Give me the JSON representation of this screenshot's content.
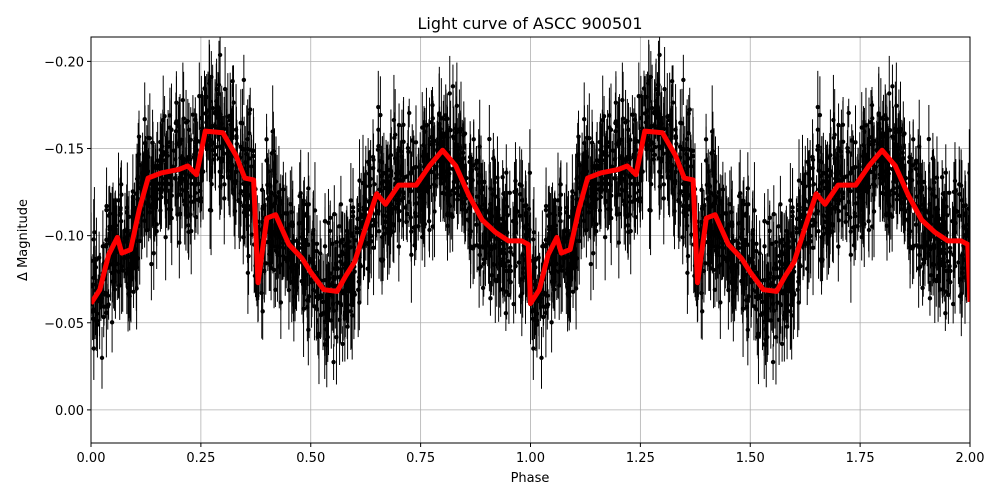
{
  "chart_data": {
    "type": "scatter",
    "title": "Light curve of ASCC 900501",
    "xlabel": "Phase",
    "ylabel": "Δ Magnitude",
    "xlim": [
      0,
      2
    ],
    "ylim": [
      0.019,
      -0.214
    ],
    "y_inverted": true,
    "grid": true,
    "xticks": [
      0,
      0.25,
      0.5,
      0.75,
      1.0,
      1.25,
      1.5,
      1.75,
      2.0
    ],
    "xtick_labels": [
      "0.00",
      "0.25",
      "0.50",
      "0.75",
      "1.00",
      "1.25",
      "1.50",
      "1.75",
      "2.00"
    ],
    "yticks": [
      -0.2,
      -0.15,
      -0.1,
      -0.05,
      0.0
    ],
    "ytick_labels": [
      "−0.20",
      "−0.15",
      "−0.10",
      "−0.05",
      "0.00"
    ],
    "colors": {
      "points": "#000000",
      "binned_curve": "#ff0000",
      "grid": "#b0b0b0"
    },
    "series": [
      {
        "kind": "binned-curve",
        "period_repeat": 2,
        "x": [
          0.0,
          0.02,
          0.04,
          0.06,
          0.07,
          0.09,
          0.11,
          0.13,
          0.16,
          0.2,
          0.22,
          0.24,
          0.26,
          0.3,
          0.33,
          0.35,
          0.37,
          0.38,
          0.4,
          0.42,
          0.45,
          0.48,
          0.5,
          0.53,
          0.56,
          0.58,
          0.6,
          0.62,
          0.65,
          0.67,
          0.7,
          0.74,
          0.77,
          0.8,
          0.83,
          0.86,
          0.89,
          0.92,
          0.95,
          0.98,
          0.995
        ],
        "y": [
          -0.061,
          -0.069,
          -0.089,
          -0.099,
          -0.09,
          -0.092,
          -0.115,
          -0.133,
          -0.136,
          -0.138,
          -0.14,
          -0.135,
          -0.16,
          -0.159,
          -0.146,
          -0.133,
          -0.132,
          -0.073,
          -0.11,
          -0.112,
          -0.095,
          -0.087,
          -0.079,
          -0.069,
          -0.068,
          -0.077,
          -0.085,
          -0.101,
          -0.124,
          -0.118,
          -0.129,
          -0.129,
          -0.14,
          -0.149,
          -0.14,
          -0.123,
          -0.109,
          -0.102,
          -0.097,
          -0.097,
          -0.095
        ]
      }
    ]
  }
}
